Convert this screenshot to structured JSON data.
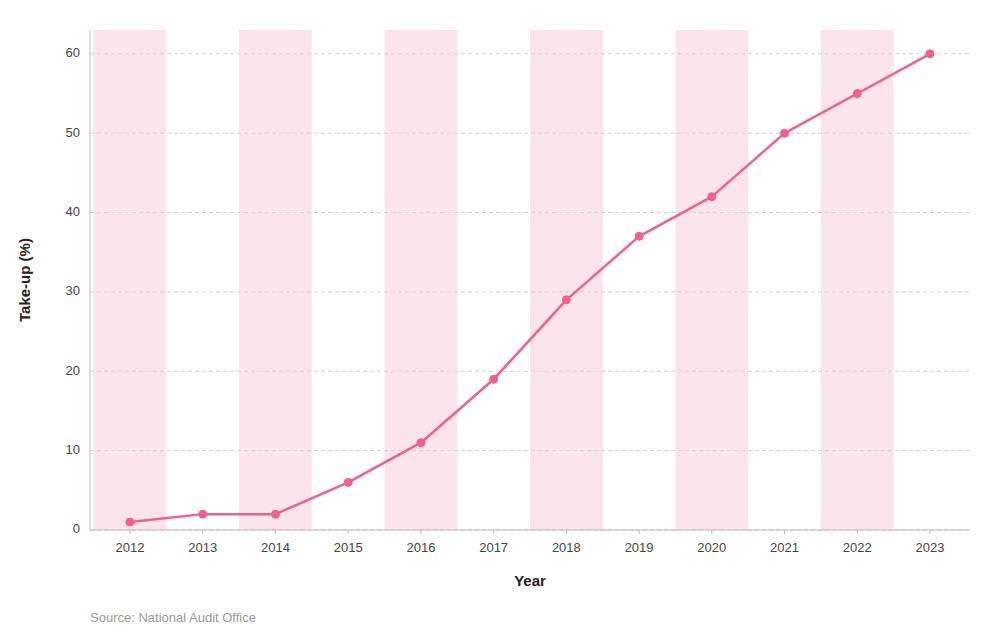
{
  "chart_data": {
    "type": "line",
    "x": [
      2012,
      2013,
      2014,
      2015,
      2016,
      2017,
      2018,
      2019,
      2020,
      2021,
      2022,
      2023
    ],
    "values": [
      1,
      2,
      2,
      6,
      11,
      19,
      29,
      37,
      42,
      50,
      55,
      60
    ],
    "color": "#F06090",
    "marker": "circle",
    "xlabel": "Year",
    "ylabel": "Take-up (%)",
    "annotations": [
      "Source: National Audit Office"
    ],
    "bands": [
      2012,
      2014,
      2016,
      2018,
      2020,
      2022
    ],
    "xlim": [
      2011.45,
      2023.55
    ],
    "xticks": [
      2012,
      2013,
      2014,
      2015,
      2016,
      2017,
      2018,
      2019,
      2020,
      2021,
      2022,
      2023
    ],
    "ylim": [
      0,
      63
    ],
    "yticks": [
      0,
      10,
      20,
      30,
      40,
      50,
      60
    ],
    "grid": true
  }
}
